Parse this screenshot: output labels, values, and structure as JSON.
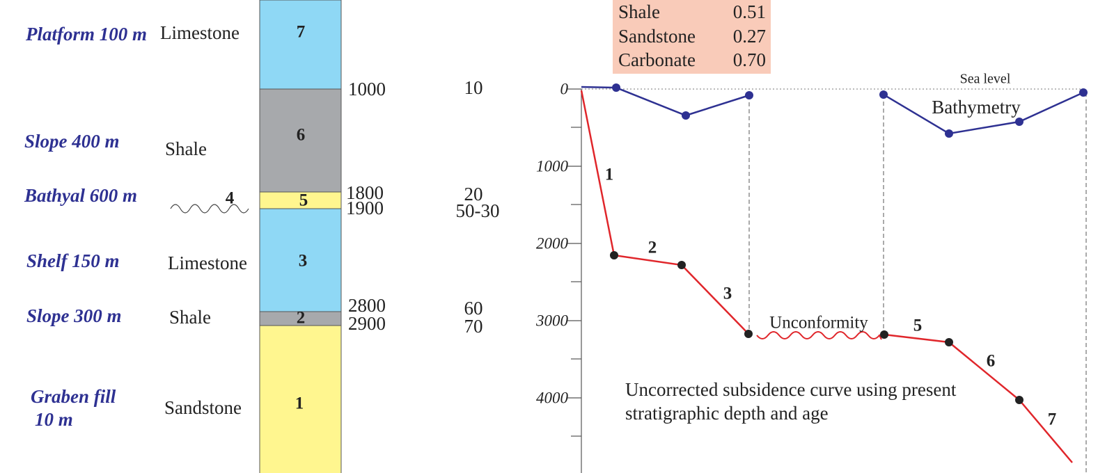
{
  "column": {
    "layers": [
      {
        "number": "7",
        "environment": "Platform 100 m",
        "lithology": "Limestone"
      },
      {
        "number": "6",
        "environment": "Slope 400 m",
        "lithology": "Shale"
      },
      {
        "number": "5",
        "environment": "Bathyal 600 m"
      },
      {
        "number": "4"
      },
      {
        "number": "3",
        "environment": "Shelf 150 m",
        "lithology": "Limestone"
      },
      {
        "number": "2",
        "environment": "Slope 300 m",
        "lithology": "Shale"
      },
      {
        "number": "1",
        "environment": [
          "Graben fill",
          "10 m"
        ],
        "lithology": "Sandstone"
      }
    ],
    "depths": [
      "1000",
      "1800",
      "1900",
      "2800",
      "2900"
    ],
    "ages": [
      "10",
      "20",
      "50-30",
      "60",
      "70"
    ]
  },
  "legend": {
    "rows": [
      [
        "Shale",
        "0.51"
      ],
      [
        "Sandstone",
        "0.27"
      ],
      [
        "Carbonate",
        "0.70"
      ]
    ]
  },
  "plot": {
    "depth_ticks": [
      "0",
      "1000",
      "2000",
      "3000",
      "4000"
    ],
    "sea_level": "Sea level",
    "bathymetry": "Bathymetry",
    "unconformity": "Unconformity",
    "segments": [
      "1",
      "2",
      "3",
      "5",
      "6",
      "7"
    ],
    "caption": [
      "Uncorrected subsidence curve using present",
      "stratigraphic depth and age"
    ]
  }
}
